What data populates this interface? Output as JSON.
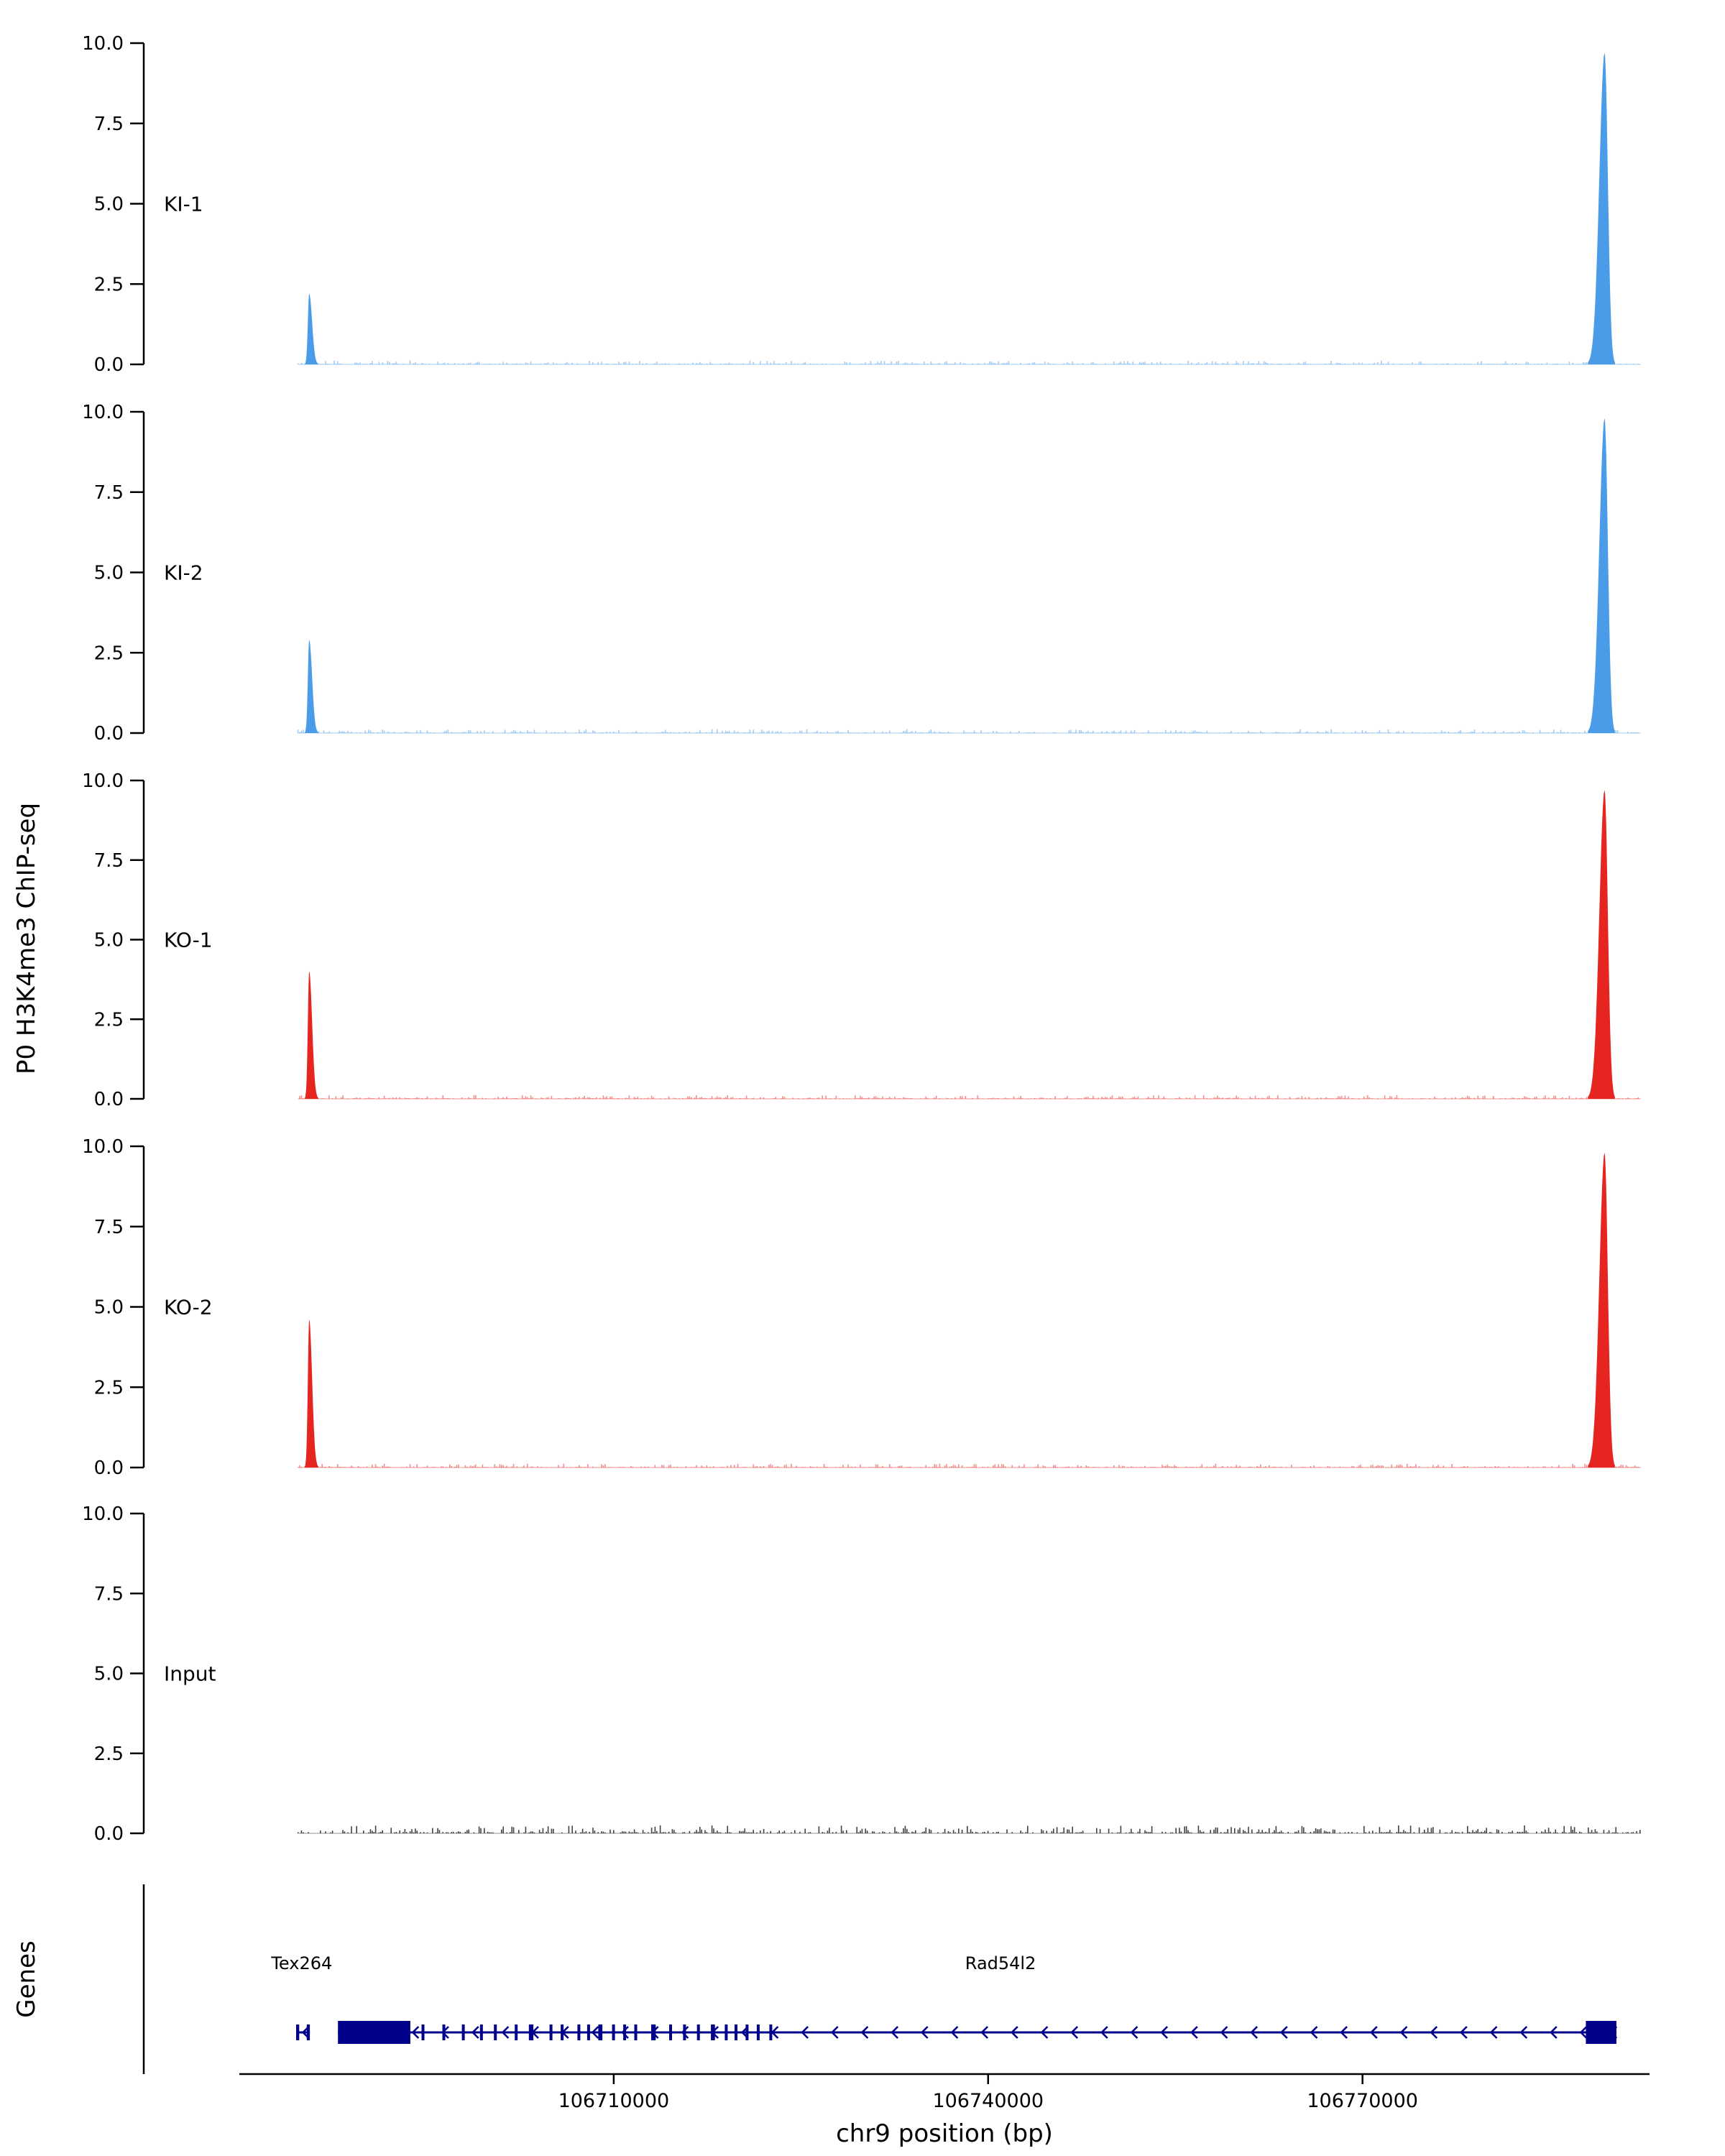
{
  "figure": {
    "background": "#ffffff"
  },
  "chart_data": {
    "type": "area",
    "title": "",
    "xlabel": "chr9 position (bp)",
    "ylabel": "P0 H3K4me3 ChIP-seq",
    "genes_axis_label": "Genes",
    "x_domain": [
      106680000,
      106793000
    ],
    "x_ticks": [
      106710000,
      106740000,
      106770000
    ],
    "x_tick_labels": [
      "106710000",
      "106740000",
      "106770000"
    ],
    "y_ticks": [
      0.0,
      2.5,
      5.0,
      7.5,
      10.0
    ],
    "y_tick_labels": [
      "0.0",
      "2.5",
      "5.0",
      "7.5",
      "10.0"
    ],
    "ylim": [
      0,
      10
    ],
    "grid": false,
    "data_region": [
      106684700,
      106792300
    ],
    "tracks": [
      {
        "name": "KI-1",
        "color": "#4B9CE8",
        "noise_max": 0.12,
        "peaks": [
          {
            "center": 106685600,
            "height": 2.2,
            "sigma_left_bp": 110,
            "sigma_right_bp": 230
          },
          {
            "center": 106789400,
            "height": 9.7,
            "sigma_left_bp": 420,
            "sigma_right_bp": 260
          }
        ]
      },
      {
        "name": "KI-2",
        "color": "#4B9CE8",
        "noise_max": 0.12,
        "peaks": [
          {
            "center": 106685600,
            "height": 2.9,
            "sigma_left_bp": 110,
            "sigma_right_bp": 230
          },
          {
            "center": 106789400,
            "height": 9.8,
            "sigma_left_bp": 420,
            "sigma_right_bp": 260
          }
        ]
      },
      {
        "name": "KO-1",
        "color": "#E62520",
        "noise_max": 0.12,
        "peaks": [
          {
            "center": 106685600,
            "height": 4.0,
            "sigma_left_bp": 110,
            "sigma_right_bp": 230
          },
          {
            "center": 106789400,
            "height": 9.7,
            "sigma_left_bp": 420,
            "sigma_right_bp": 260
          }
        ]
      },
      {
        "name": "KO-2",
        "color": "#E62520",
        "noise_max": 0.12,
        "peaks": [
          {
            "center": 106685600,
            "height": 4.6,
            "sigma_left_bp": 110,
            "sigma_right_bp": 230
          },
          {
            "center": 106789400,
            "height": 9.8,
            "sigma_left_bp": 420,
            "sigma_right_bp": 260
          }
        ]
      },
      {
        "name": "Input",
        "color": "#222222",
        "noise_max": 0.25,
        "peaks": []
      }
    ],
    "gene_color": "#00008B",
    "genes": [
      {
        "name": "Tex264",
        "strand": "-",
        "span": [
          106684550,
          106685650
        ],
        "label_pos": 106685000,
        "arrow_spacing_bp": 1100,
        "exons": [
          [
            106684550,
            106684800
          ],
          [
            106685400,
            106685650
          ]
        ],
        "tall_exons": []
      },
      {
        "name": "Rad54l2",
        "strand": "-",
        "span": [
          106687900,
          106790350
        ],
        "label_pos": 106741000,
        "arrow_spacing_bp": 2400,
        "exons": [
          [
            106694600,
            106694780
          ],
          [
            106696270,
            106696430
          ],
          [
            106697830,
            106697990
          ],
          [
            106699280,
            106699440
          ],
          [
            106700400,
            106700560
          ],
          [
            106702070,
            106702230
          ],
          [
            106703200,
            106703560
          ],
          [
            106704860,
            106705020
          ],
          [
            106705750,
            106705910
          ],
          [
            106707090,
            106707250
          ],
          [
            106707870,
            106708030
          ],
          [
            106708760,
            106709090
          ],
          [
            106709870,
            106710030
          ],
          [
            106710760,
            106710920
          ],
          [
            106711650,
            106711810
          ],
          [
            106713000,
            106713360
          ],
          [
            106714440,
            106714600
          ],
          [
            106715560,
            106715720
          ],
          [
            106716670,
            106716830
          ],
          [
            106717790,
            106718110
          ],
          [
            106718900,
            106719060
          ],
          [
            106719680,
            106719840
          ],
          [
            106720570,
            106720730
          ],
          [
            106721460,
            106721620
          ],
          [
            106722470,
            106722630
          ]
        ],
        "tall_exons": [
          [
            106687900,
            106693700
          ],
          [
            106787900,
            106790350
          ]
        ]
      }
    ]
  }
}
